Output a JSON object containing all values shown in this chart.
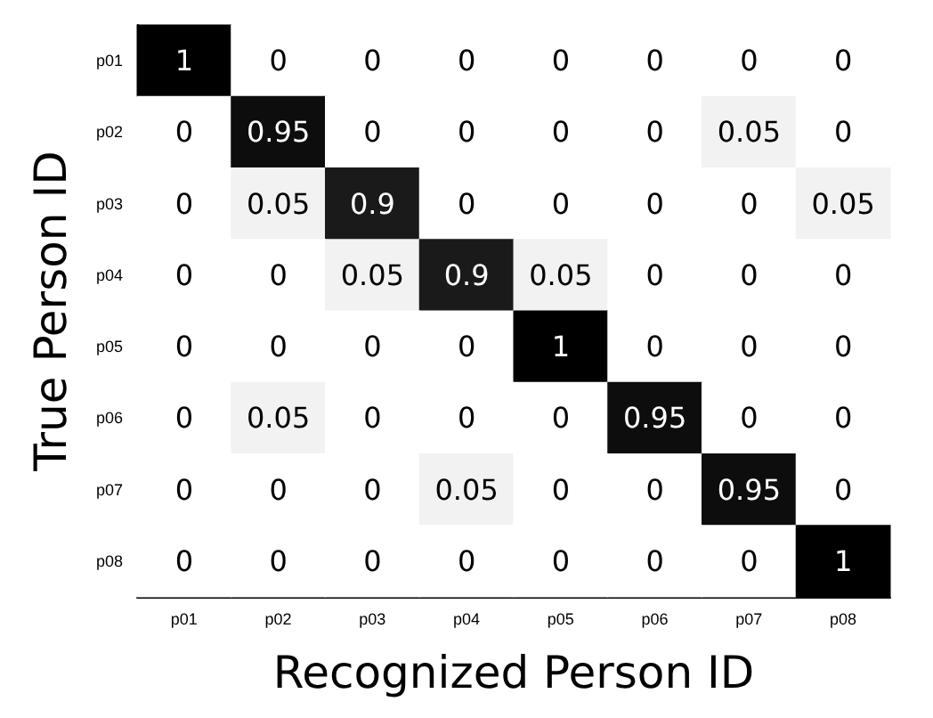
{
  "chart_data": {
    "type": "heatmap",
    "xlabel": "Recognized Person ID",
    "ylabel": "True Person ID",
    "categories": [
      "p01",
      "p02",
      "p03",
      "p04",
      "p05",
      "p06",
      "p07",
      "p08"
    ],
    "y_categories": [
      "p01",
      "p02",
      "p03",
      "p04",
      "p05",
      "p06",
      "p07",
      "p08"
    ],
    "cells": [
      [
        1,
        0,
        0,
        0,
        0,
        0,
        0,
        0
      ],
      [
        0,
        0.95,
        0,
        0,
        0,
        0,
        0.05,
        0
      ],
      [
        0,
        0.05,
        0.9,
        0,
        0,
        0,
        0,
        0.05
      ],
      [
        0,
        0,
        0.05,
        0.9,
        0.05,
        0,
        0,
        0
      ],
      [
        0,
        0,
        0,
        0,
        1,
        0,
        0,
        0
      ],
      [
        0,
        0.05,
        0,
        0,
        0,
        0.95,
        0,
        0
      ],
      [
        0,
        0,
        0,
        0.05,
        0,
        0,
        0.95,
        0
      ],
      [
        0,
        0,
        0,
        0,
        0,
        0,
        0,
        1
      ]
    ],
    "data_labels": true
  }
}
